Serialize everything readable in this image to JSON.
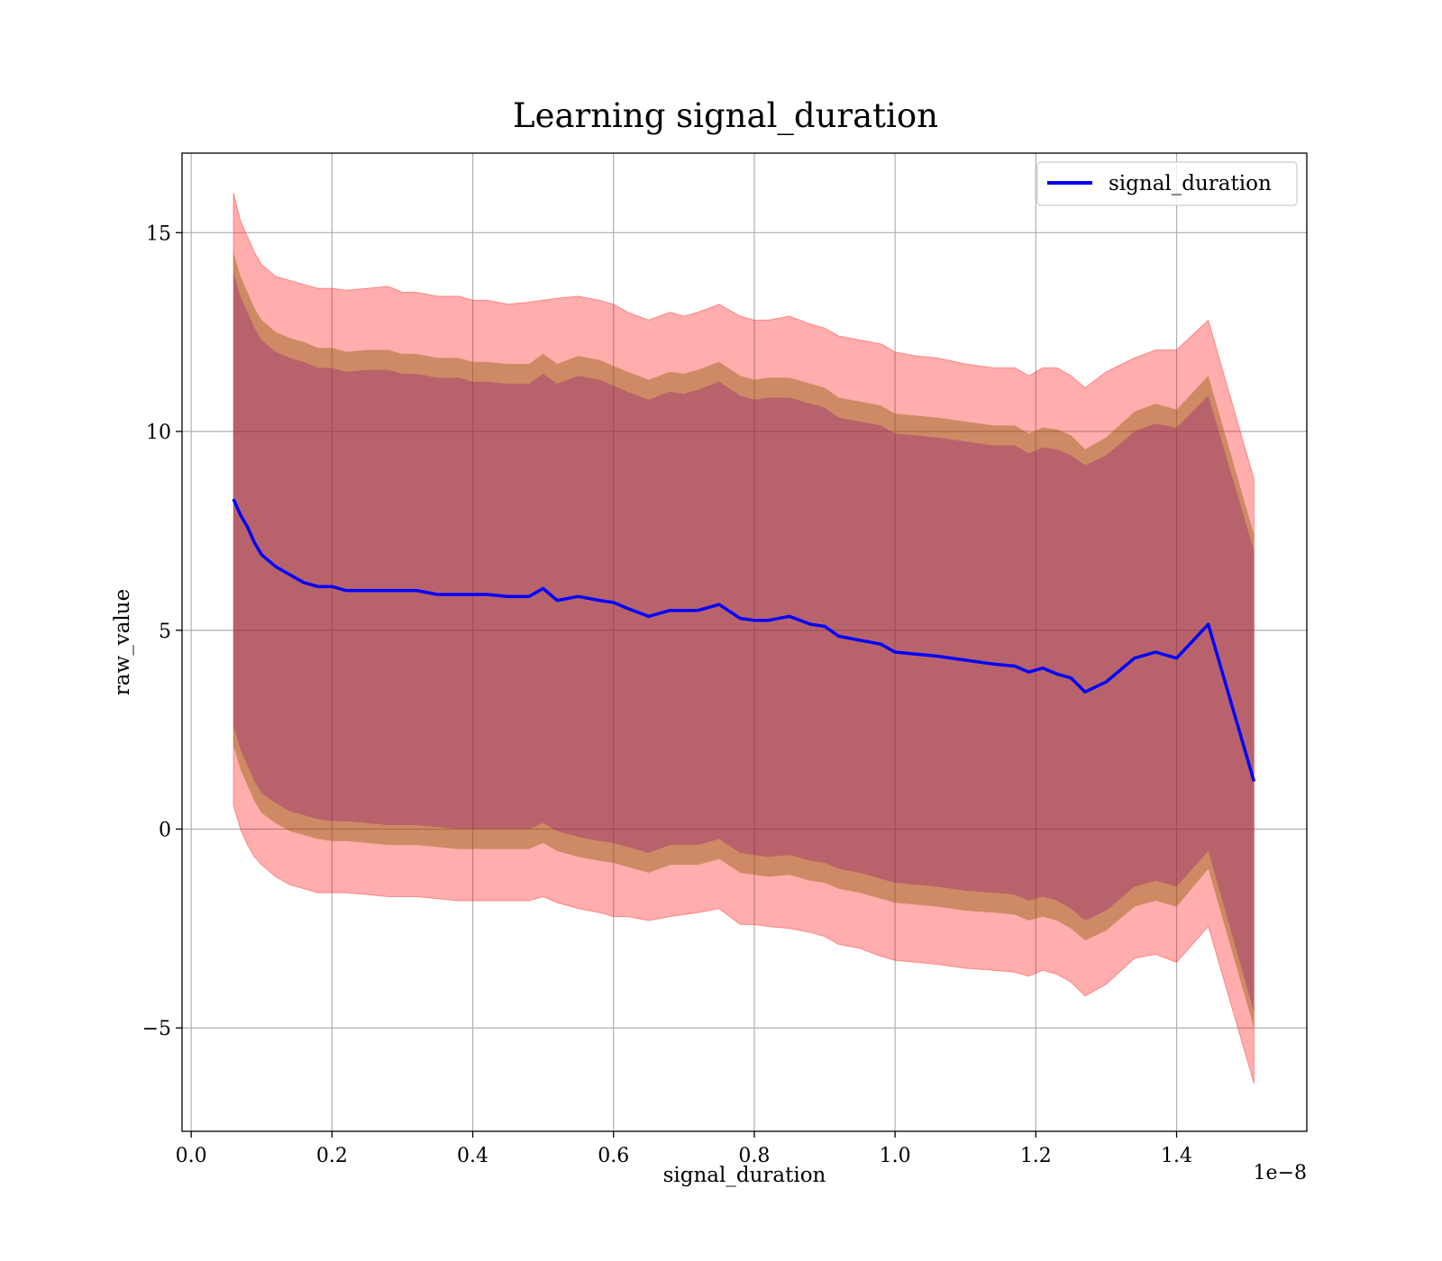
{
  "chart_data": {
    "type": "line",
    "title": "Learning signal_duration",
    "xlabel": "signal_duration",
    "ylabel": "raw_value",
    "x_offset_text": "1e−8",
    "xlim": [
      -0.013,
      1.585
    ],
    "ylim": [
      -7.6,
      17.0
    ],
    "x_ticks": [
      0.0,
      0.2,
      0.4,
      0.6,
      0.8,
      1.0,
      1.2,
      1.4
    ],
    "x_tick_labels": [
      "0.0",
      "0.2",
      "0.4",
      "0.6",
      "0.8",
      "1.0",
      "1.2",
      "1.4"
    ],
    "y_ticks": [
      -5,
      0,
      5,
      10,
      15
    ],
    "y_tick_labels": [
      "−5",
      "0",
      "5",
      "10",
      "15"
    ],
    "grid": true,
    "legend": {
      "position": "top-right",
      "entries": [
        "signal_duration"
      ]
    },
    "colors": {
      "line": "#0000ff",
      "band_outer": "#ff0000",
      "band_middle": "#8b5a00",
      "band_inner": "#800080"
    },
    "series": [
      {
        "name": "signal_duration",
        "x": [
          0.06,
          0.07,
          0.08,
          0.09,
          0.1,
          0.12,
          0.14,
          0.16,
          0.18,
          0.2,
          0.22,
          0.25,
          0.28,
          0.3,
          0.32,
          0.35,
          0.38,
          0.4,
          0.42,
          0.45,
          0.48,
          0.5,
          0.52,
          0.55,
          0.58,
          0.6,
          0.62,
          0.65,
          0.68,
          0.7,
          0.72,
          0.75,
          0.78,
          0.8,
          0.82,
          0.85,
          0.88,
          0.9,
          0.92,
          0.95,
          0.98,
          1.0,
          1.03,
          1.06,
          1.1,
          1.14,
          1.17,
          1.19,
          1.21,
          1.23,
          1.25,
          1.27,
          1.3,
          1.34,
          1.37,
          1.4,
          1.445,
          1.51
        ],
        "y": [
          8.3,
          7.9,
          7.6,
          7.2,
          6.9,
          6.6,
          6.4,
          6.2,
          6.1,
          6.1,
          6.0,
          6.0,
          6.0,
          6.0,
          6.0,
          5.9,
          5.9,
          5.9,
          5.9,
          5.85,
          5.85,
          6.05,
          5.75,
          5.85,
          5.75,
          5.7,
          5.55,
          5.35,
          5.5,
          5.5,
          5.5,
          5.65,
          5.3,
          5.25,
          5.25,
          5.35,
          5.15,
          5.1,
          4.85,
          4.75,
          4.65,
          4.45,
          4.4,
          4.35,
          4.25,
          4.15,
          4.1,
          3.95,
          4.05,
          3.9,
          3.8,
          3.45,
          3.7,
          4.3,
          4.45,
          4.3,
          5.15,
          1.2
        ],
        "band_outer_upper": [
          16.0,
          15.3,
          14.9,
          14.5,
          14.2,
          13.9,
          13.8,
          13.7,
          13.6,
          13.6,
          13.55,
          13.6,
          13.65,
          13.5,
          13.5,
          13.4,
          13.4,
          13.3,
          13.3,
          13.2,
          13.25,
          13.3,
          13.35,
          13.4,
          13.3,
          13.2,
          13.0,
          12.8,
          13.0,
          12.9,
          13.0,
          13.2,
          12.9,
          12.8,
          12.8,
          12.9,
          12.7,
          12.6,
          12.4,
          12.3,
          12.2,
          12.0,
          11.9,
          11.85,
          11.7,
          11.6,
          11.6,
          11.4,
          11.6,
          11.6,
          11.4,
          11.1,
          11.5,
          11.85,
          12.05,
          12.05,
          12.8,
          8.8
        ],
        "band_outer_lower": [
          0.6,
          0.0,
          -0.4,
          -0.7,
          -0.9,
          -1.2,
          -1.4,
          -1.5,
          -1.6,
          -1.6,
          -1.6,
          -1.65,
          -1.7,
          -1.7,
          -1.7,
          -1.75,
          -1.8,
          -1.8,
          -1.8,
          -1.8,
          -1.8,
          -1.7,
          -1.85,
          -2.0,
          -2.1,
          -2.2,
          -2.2,
          -2.3,
          -2.2,
          -2.15,
          -2.1,
          -2.0,
          -2.4,
          -2.4,
          -2.45,
          -2.5,
          -2.6,
          -2.7,
          -2.9,
          -3.0,
          -3.2,
          -3.3,
          -3.35,
          -3.4,
          -3.5,
          -3.55,
          -3.6,
          -3.7,
          -3.55,
          -3.65,
          -3.85,
          -4.2,
          -3.9,
          -3.25,
          -3.15,
          -3.35,
          -2.45,
          -6.4
        ],
        "band_middle_upper": [
          14.5,
          13.9,
          13.5,
          13.1,
          12.8,
          12.5,
          12.35,
          12.25,
          12.1,
          12.1,
          12.0,
          12.05,
          12.05,
          11.95,
          11.95,
          11.85,
          11.85,
          11.75,
          11.75,
          11.7,
          11.7,
          11.95,
          11.7,
          11.9,
          11.8,
          11.65,
          11.5,
          11.3,
          11.5,
          11.45,
          11.55,
          11.75,
          11.4,
          11.3,
          11.35,
          11.35,
          11.2,
          11.1,
          10.85,
          10.75,
          10.65,
          10.45,
          10.4,
          10.35,
          10.25,
          10.15,
          10.15,
          9.95,
          10.1,
          10.05,
          9.9,
          9.55,
          9.85,
          10.5,
          10.7,
          10.55,
          11.4,
          7.4
        ],
        "band_middle_lower": [
          2.1,
          1.5,
          1.1,
          0.7,
          0.4,
          0.15,
          -0.05,
          -0.15,
          -0.25,
          -0.3,
          -0.3,
          -0.35,
          -0.4,
          -0.4,
          -0.4,
          -0.45,
          -0.5,
          -0.5,
          -0.5,
          -0.5,
          -0.5,
          -0.35,
          -0.55,
          -0.7,
          -0.8,
          -0.85,
          -0.95,
          -1.1,
          -0.9,
          -0.9,
          -0.9,
          -0.75,
          -1.1,
          -1.15,
          -1.2,
          -1.15,
          -1.3,
          -1.35,
          -1.5,
          -1.6,
          -1.75,
          -1.85,
          -1.9,
          -1.95,
          -2.05,
          -2.1,
          -2.15,
          -2.3,
          -2.2,
          -2.3,
          -2.5,
          -2.8,
          -2.55,
          -1.95,
          -1.8,
          -1.95,
          -1.0,
          -5.0
        ],
        "band_inner_upper": [
          14.0,
          13.4,
          13.0,
          12.6,
          12.3,
          12.0,
          11.85,
          11.75,
          11.6,
          11.6,
          11.5,
          11.55,
          11.55,
          11.45,
          11.45,
          11.35,
          11.35,
          11.25,
          11.25,
          11.2,
          11.2,
          11.45,
          11.2,
          11.4,
          11.3,
          11.15,
          11.0,
          10.8,
          11.0,
          10.95,
          11.05,
          11.25,
          10.9,
          10.8,
          10.85,
          10.85,
          10.7,
          10.6,
          10.35,
          10.25,
          10.15,
          9.95,
          9.9,
          9.85,
          9.75,
          9.65,
          9.65,
          9.45,
          9.6,
          9.55,
          9.4,
          9.15,
          9.4,
          10.0,
          10.2,
          10.1,
          10.9,
          7.0
        ],
        "band_inner_lower": [
          2.6,
          2.0,
          1.6,
          1.2,
          0.9,
          0.65,
          0.45,
          0.35,
          0.25,
          0.2,
          0.2,
          0.15,
          0.1,
          0.1,
          0.1,
          0.05,
          0.0,
          0.0,
          0.0,
          0.0,
          0.0,
          0.15,
          -0.05,
          -0.2,
          -0.3,
          -0.35,
          -0.45,
          -0.6,
          -0.4,
          -0.4,
          -0.4,
          -0.25,
          -0.6,
          -0.65,
          -0.7,
          -0.65,
          -0.8,
          -0.85,
          -1.0,
          -1.1,
          -1.25,
          -1.35,
          -1.4,
          -1.45,
          -1.55,
          -1.6,
          -1.65,
          -1.8,
          -1.7,
          -1.8,
          -2.0,
          -2.3,
          -2.05,
          -1.45,
          -1.3,
          -1.45,
          -0.55,
          -4.6
        ]
      }
    ]
  }
}
